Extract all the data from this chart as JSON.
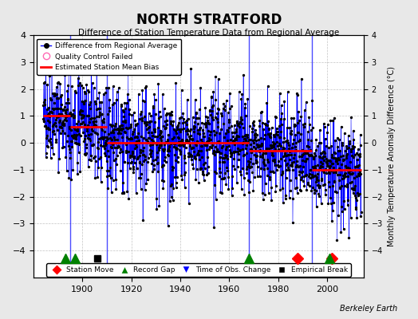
{
  "title": "NORTH STRATFORD",
  "subtitle": "Difference of Station Temperature Data from Regional Average",
  "ylabel_right": "Monthly Temperature Anomaly Difference (°C)",
  "credit": "Berkeley Earth",
  "xlim": [
    1880,
    2015
  ],
  "ylim": [
    -5,
    4
  ],
  "yticks": [
    -4,
    -3,
    -2,
    -1,
    0,
    1,
    2,
    3,
    4
  ],
  "xticks": [
    1900,
    1920,
    1940,
    1960,
    1980,
    2000
  ],
  "background_color": "#e8e8e8",
  "plot_bg_color": "#ffffff",
  "segments": [
    {
      "start": 1884,
      "end": 1895,
      "bias": 1.0
    },
    {
      "start": 1895,
      "end": 1910,
      "bias": 0.6
    },
    {
      "start": 1910,
      "end": 1968,
      "bias": 0.0
    },
    {
      "start": 1968,
      "end": 1994,
      "bias": -0.3
    },
    {
      "start": 1994,
      "end": 2014,
      "bias": -1.0
    }
  ],
  "station_moves": [
    1988,
    2002
  ],
  "record_gaps": [
    1893,
    1897,
    1968,
    2001
  ],
  "time_of_obs_changes": [],
  "empirical_breaks": [
    1906
  ],
  "marker_y": -4.3
}
